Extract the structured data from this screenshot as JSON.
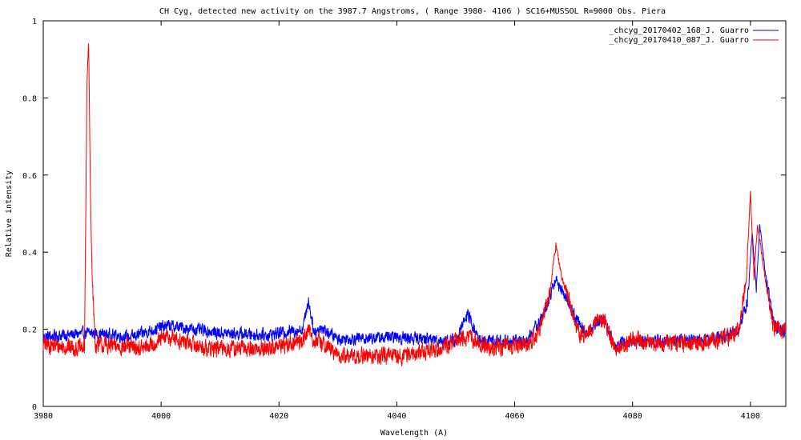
{
  "chart_data": {
    "type": "line",
    "title": "CH Cyg, detected new activity on the 3987.7 Angstroms, ( Range 3980- 4106 )  SC16+MUSSOL    R=9000  Obs. Piera",
    "xlabel": "Wavelength (A)",
    "ylabel": "Relative intensity",
    "xlim": [
      3980,
      4106
    ],
    "ylim": [
      0,
      1
    ],
    "x_ticks": [
      "3980",
      "4000",
      "4020",
      "4040",
      "4060",
      "4080",
      "4100"
    ],
    "y_ticks": [
      "0",
      "0.2",
      "0.4",
      "0.6",
      "0.8",
      "1"
    ],
    "grid": false,
    "legend_position": "top-right",
    "series": [
      {
        "name": "_chcyg_20170402_168_J. Guarro",
        "color": "#0000ff",
        "baseline": 0.18,
        "noise": 0.022,
        "points": [
          [
            3980,
            0.18
          ],
          [
            3988,
            0.19
          ],
          [
            3995,
            0.18
          ],
          [
            4001,
            0.21
          ],
          [
            4010,
            0.19
          ],
          [
            4018,
            0.185
          ],
          [
            4024,
            0.2
          ],
          [
            4025,
            0.275
          ],
          [
            4026,
            0.19
          ],
          [
            4027,
            0.205
          ],
          [
            4030,
            0.175
          ],
          [
            4040,
            0.18
          ],
          [
            4050,
            0.17
          ],
          [
            4052,
            0.24
          ],
          [
            4054,
            0.17
          ],
          [
            4062,
            0.17
          ],
          [
            4065,
            0.24
          ],
          [
            4067,
            0.33
          ],
          [
            4068,
            0.3
          ],
          [
            4070,
            0.24
          ],
          [
            4072,
            0.19
          ],
          [
            4075,
            0.23
          ],
          [
            4077,
            0.16
          ],
          [
            4080,
            0.17
          ],
          [
            4090,
            0.17
          ],
          [
            4096,
            0.185
          ],
          [
            4098,
            0.2
          ],
          [
            4099.5,
            0.27
          ],
          [
            4100.3,
            0.45
          ],
          [
            4101,
            0.31
          ],
          [
            4101.6,
            0.47
          ],
          [
            4102.5,
            0.35
          ],
          [
            4104,
            0.21
          ],
          [
            4106,
            0.19
          ]
        ]
      },
      {
        "name": "_chcyg_20170410_087_J. Guarro",
        "color": "#ff0000",
        "baseline": 0.155,
        "noise": 0.03,
        "points": [
          [
            3980,
            0.16
          ],
          [
            3987,
            0.15
          ],
          [
            3987.4,
            0.82
          ],
          [
            3987.7,
            0.95
          ],
          [
            3988,
            0.55
          ],
          [
            3988.3,
            0.34
          ],
          [
            3988.8,
            0.16
          ],
          [
            3997,
            0.15
          ],
          [
            4001,
            0.18
          ],
          [
            4008,
            0.15
          ],
          [
            4018,
            0.15
          ],
          [
            4024,
            0.17
          ],
          [
            4025,
            0.2
          ],
          [
            4026,
            0.17
          ],
          [
            4028,
            0.16
          ],
          [
            4030,
            0.13
          ],
          [
            4040,
            0.13
          ],
          [
            4047,
            0.15
          ],
          [
            4052,
            0.18
          ],
          [
            4056,
            0.15
          ],
          [
            4062,
            0.16
          ],
          [
            4064,
            0.19
          ],
          [
            4066,
            0.3
          ],
          [
            4067,
            0.42
          ],
          [
            4068,
            0.33
          ],
          [
            4069,
            0.29
          ],
          [
            4071,
            0.18
          ],
          [
            4075,
            0.23
          ],
          [
            4077,
            0.15
          ],
          [
            4080,
            0.17
          ],
          [
            4090,
            0.16
          ],
          [
            4096,
            0.18
          ],
          [
            4098,
            0.2
          ],
          [
            4099.3,
            0.33
          ],
          [
            4100,
            0.555
          ],
          [
            4100.6,
            0.33
          ],
          [
            4101.2,
            0.475
          ],
          [
            4102.5,
            0.33
          ],
          [
            4104,
            0.2
          ],
          [
            4106,
            0.2
          ]
        ]
      }
    ]
  }
}
